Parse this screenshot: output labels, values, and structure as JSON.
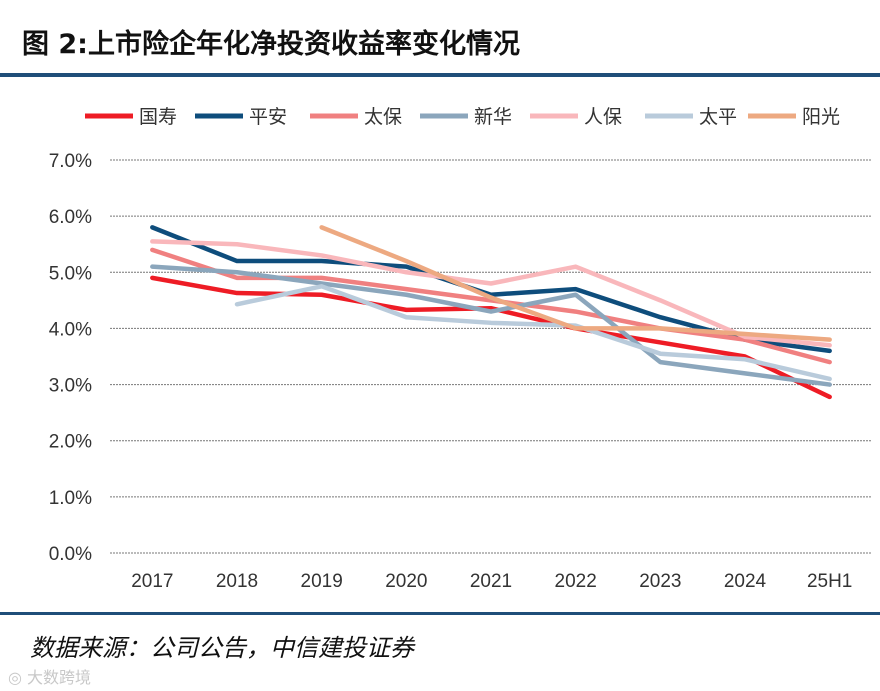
{
  "title": "图 2:上市险企年化净投资收益率变化情况",
  "source": "数据来源：公司公告，中信建投证券",
  "watermark": "大数跨境",
  "chart_data": {
    "type": "line",
    "title": "图 2:上市险企年化净投资收益率变化情况",
    "xlabel": "",
    "ylabel": "",
    "categories": [
      "2017",
      "2018",
      "2019",
      "2020",
      "2021",
      "2022",
      "2023",
      "2024",
      "25H1"
    ],
    "ylim": [
      0,
      7
    ],
    "yticks": [
      "0.0%",
      "1.0%",
      "2.0%",
      "3.0%",
      "4.0%",
      "5.0%",
      "6.0%",
      "7.0%"
    ],
    "grid": true,
    "legend_position": "top",
    "series": [
      {
        "name": "国寿",
        "color": "#ee1c25",
        "values": [
          4.9,
          4.63,
          4.6,
          4.33,
          4.36,
          4.0,
          3.75,
          3.5,
          2.78
        ]
      },
      {
        "name": "平安",
        "color": "#0e4d7c",
        "values": [
          5.8,
          5.2,
          5.2,
          5.1,
          4.6,
          4.7,
          4.2,
          3.8,
          3.6
        ]
      },
      {
        "name": "太保",
        "color": "#f08080",
        "values": [
          5.4,
          4.9,
          4.9,
          4.7,
          4.5,
          4.3,
          4.0,
          3.8,
          3.4
        ]
      },
      {
        "name": "新华",
        "color": "#8ba6bc",
        "values": [
          5.1,
          5.0,
          4.8,
          4.6,
          4.3,
          4.6,
          3.4,
          3.2,
          3.0
        ]
      },
      {
        "name": "人保",
        "color": "#f9b7bb",
        "values": [
          5.55,
          5.5,
          5.3,
          5.0,
          4.8,
          5.1,
          4.5,
          3.85,
          3.7
        ]
      },
      {
        "name": "太平",
        "color": "#b9cbdb",
        "values": [
          null,
          4.43,
          4.75,
          4.2,
          4.1,
          4.05,
          3.55,
          3.45,
          3.1
        ]
      },
      {
        "name": "阳光",
        "color": "#eda981",
        "values": [
          null,
          null,
          5.8,
          5.2,
          4.55,
          4.0,
          4.0,
          3.9,
          3.8
        ]
      }
    ]
  }
}
